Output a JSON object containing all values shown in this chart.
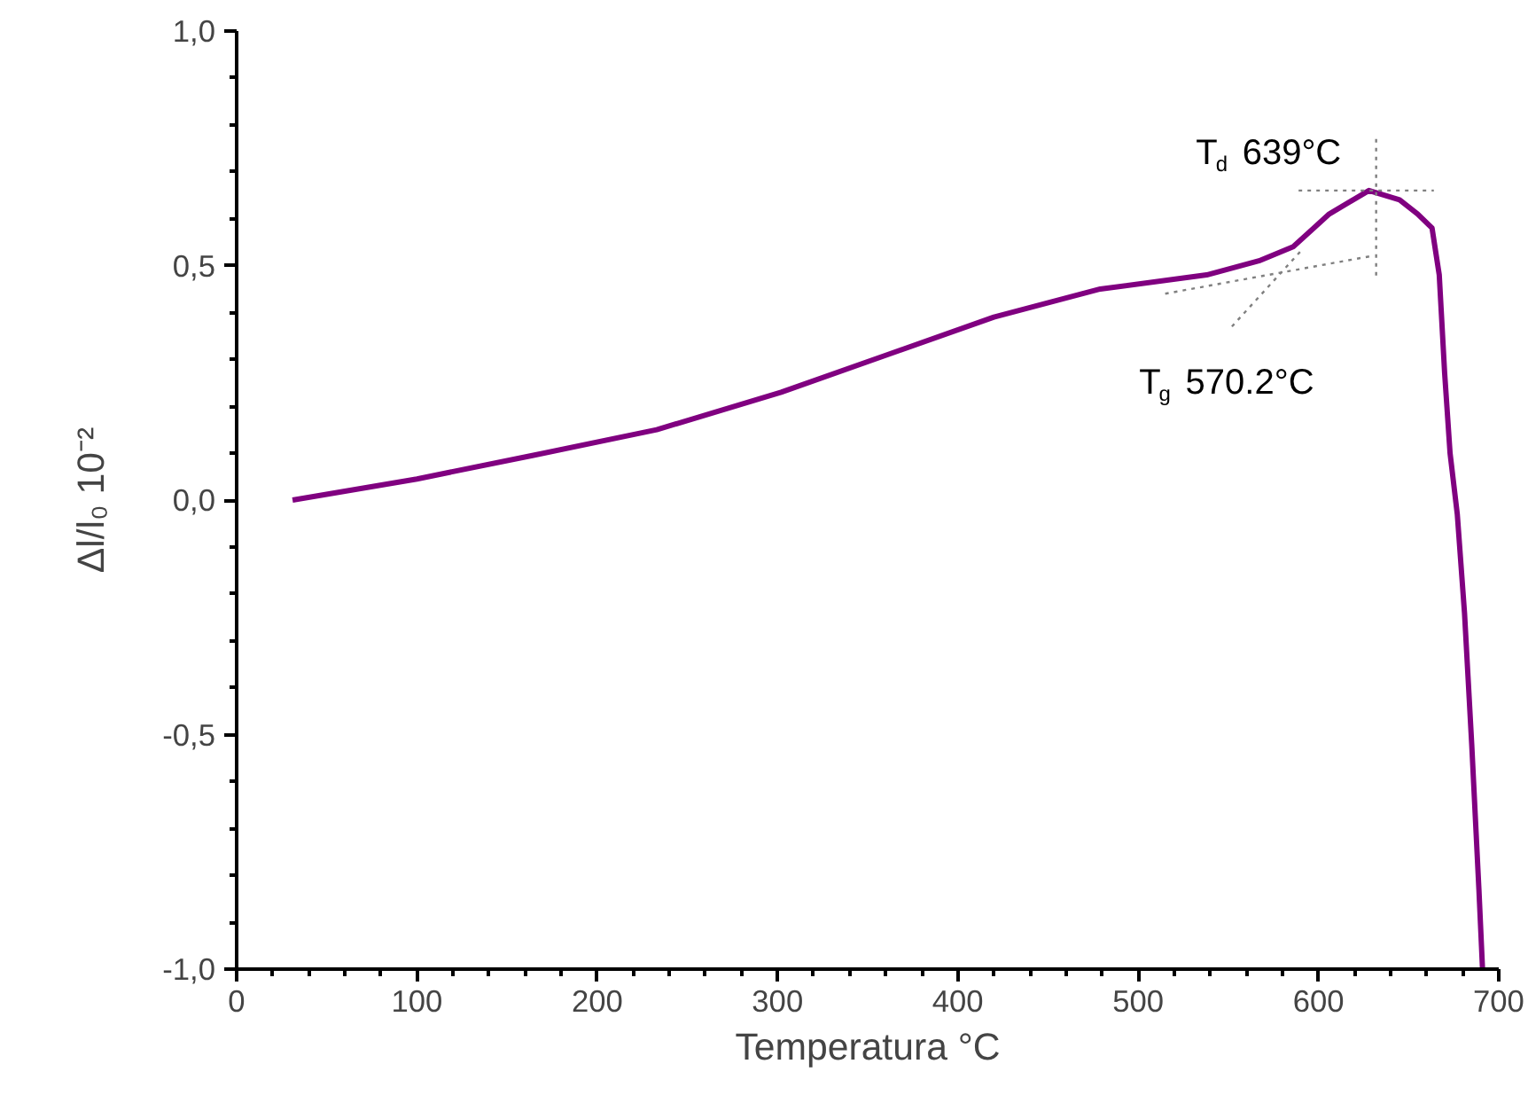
{
  "chart_data": {
    "type": "line",
    "xlabel": "Temperatura °C",
    "ylabel": "Δl/l₀ 10⁻²",
    "xlim": [
      0,
      700
    ],
    "ylim": [
      -1.0,
      1.0
    ],
    "xticks": [
      0,
      100,
      200,
      300,
      400,
      500,
      600,
      700
    ],
    "yticks": [
      {
        "value": -1.0,
        "label": "-1,0"
      },
      {
        "value": -0.5,
        "label": "-0,5"
      },
      {
        "value": 0.0,
        "label": "0,0"
      },
      {
        "value": 0.5,
        "label": "0,5"
      },
      {
        "value": 1.0,
        "label": "1,0"
      }
    ],
    "grid": false,
    "marker": "none",
    "series": [
      {
        "color": "#800080",
        "line_style": "solid",
        "x": [
          31,
          100,
          164,
          233,
          302,
          361,
          420,
          479,
          538,
          567,
          586,
          606,
          628,
          645,
          655,
          663,
          667,
          670,
          673,
          677,
          681,
          685,
          689,
          691
        ],
        "values": [
          0,
          0.045,
          0.095,
          0.15,
          0.23,
          0.31,
          0.39,
          0.45,
          0.48,
          0.51,
          0.54,
          0.61,
          0.66,
          0.64,
          0.61,
          0.58,
          0.48,
          0.27,
          0.1,
          -0.03,
          -0.24,
          -0.52,
          -0.83,
          -1.0
        ]
      },
      {
        "color": "#808080",
        "line_style": "dotted",
        "x": [
          515,
          629
        ],
        "values": [
          0.44,
          0.52
        ]
      },
      {
        "color": "#808080",
        "line_style": "dotted",
        "x": [
          552,
          590
        ],
        "values": [
          0.37,
          0.53
        ]
      },
      {
        "color": "#808080",
        "line_style": "dotted",
        "x": [
          589,
          664
        ],
        "values": [
          0.66,
          0.66
        ]
      },
      {
        "color": "#808080",
        "line_style": "dotted",
        "x": [
          632,
          632
        ],
        "values": [
          0.77,
          0.47
        ]
      }
    ],
    "annotations": [
      "T$_{d}$ 639°C",
      "T$_{g}$ 570.2°C"
    ]
  }
}
